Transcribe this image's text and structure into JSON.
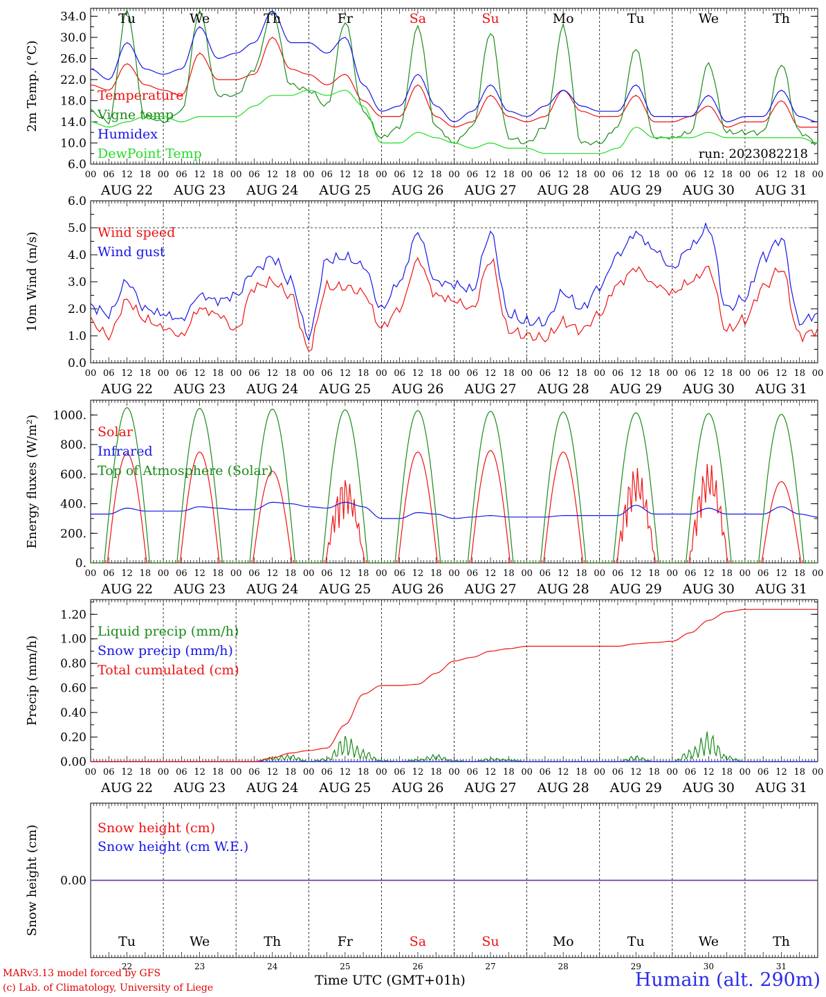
{
  "footer": {
    "model": "MARv3.13 model forced by GFS",
    "lab": "(c) Lab. of Climatology, University of Liege",
    "xtitle": "Time UTC (GMT+01h)",
    "station": "Humain (alt. 290m)"
  },
  "run_label": "run: 2023082218",
  "weekdays": [
    "Tu",
    "We",
    "Th",
    "Fr",
    "Sa",
    "Su",
    "Mo",
    "Tu",
    "We",
    "Th"
  ],
  "weekend_days": [
    "Sa",
    "Su"
  ],
  "dates": [
    "AUG 22",
    "AUG 23",
    "AUG 24",
    "AUG 25",
    "AUG 26",
    "AUG 27",
    "AUG 28",
    "AUG 29",
    "AUG 30",
    "AUG 31"
  ],
  "day_numbers": [
    "22",
    "23",
    "24",
    "25",
    "26",
    "27",
    "28",
    "29",
    "30",
    "31"
  ],
  "hour_ticks": [
    "00",
    "06",
    "12",
    "18"
  ],
  "colors": {
    "red": "#ee1111",
    "blue": "#1515e8",
    "dark_green": "#1a8a1a",
    "light_green": "#22dd22",
    "purple": "#7a3a9a"
  },
  "chart_data": [
    {
      "type": "line",
      "ylabel": "2m Temp. (°C)",
      "ylim": [
        6,
        35.5
      ],
      "yticks": [
        "6.0",
        "10.0",
        "14.0",
        "18.0",
        "22.0",
        "26.0",
        "30.0",
        "34.0"
      ],
      "x": "hours since Aug 22 00 UTC, every 6h",
      "series": [
        {
          "name": "Temperature",
          "color": "#ee1111",
          "values": [
            21,
            20,
            25,
            21,
            20,
            19,
            27,
            22,
            22,
            23,
            30,
            24,
            23,
            21,
            23,
            18,
            15,
            15,
            21,
            15,
            13,
            14,
            19,
            15,
            14,
            15,
            20,
            16,
            15,
            15,
            19,
            14,
            14,
            15,
            17,
            13,
            14,
            14,
            18,
            13,
            13
          ]
        },
        {
          "name": "Vigne temp",
          "color": "#1a8a1a",
          "values": [
            16,
            14,
            35,
            15,
            14,
            16,
            35,
            19,
            19,
            24,
            35,
            21,
            20,
            17,
            33,
            16,
            11,
            13,
            32,
            13,
            10,
            13,
            31,
            11,
            10,
            13,
            32,
            10,
            10,
            13,
            28,
            11,
            11,
            12,
            25,
            12,
            12,
            12,
            25,
            12,
            10
          ]
        },
        {
          "name": "Humidex",
          "color": "#1515e8",
          "values": [
            24,
            22,
            29,
            24,
            23,
            24,
            32,
            26,
            27,
            29,
            35,
            29,
            29,
            27,
            30,
            21,
            16,
            17,
            23,
            17,
            14,
            16,
            21,
            16,
            15,
            17,
            20,
            17,
            16,
            16,
            21,
            15,
            15,
            15,
            19,
            14,
            15,
            15,
            20,
            15,
            14
          ]
        },
        {
          "name": "DewPoint Temp",
          "color": "#22dd22",
          "values": [
            14,
            13,
            14,
            15,
            15,
            14,
            15,
            15,
            15,
            17,
            19,
            19,
            20,
            19,
            20,
            17,
            10,
            10,
            12,
            11,
            10,
            9,
            10,
            9,
            9,
            8,
            8,
            8,
            8,
            9,
            13,
            11,
            11,
            11,
            12,
            11,
            11,
            11,
            11,
            11,
            10
          ]
        }
      ],
      "legend": "top-left"
    },
    {
      "type": "line",
      "ylabel": "10m Wind (m/s)",
      "ylim": [
        0,
        6
      ],
      "yticks": [
        "0.0",
        "1.0",
        "2.0",
        "3.0",
        "4.0",
        "5.0",
        "6.0"
      ],
      "series": [
        {
          "name": "Wind speed",
          "color": "#ee1111",
          "values": [
            1.5,
            1.0,
            2.3,
            1.6,
            1.3,
            1.0,
            2.0,
            1.8,
            1.2,
            2.8,
            3.0,
            2.5,
            0.5,
            2.8,
            2.8,
            2.6,
            1.3,
            2.0,
            3.8,
            2.5,
            2.3,
            2.0,
            3.8,
            1.2,
            1.0,
            0.9,
            1.5,
            1.2,
            1.8,
            2.9,
            3.5,
            2.9,
            2.6,
            3.0,
            3.5,
            1.2,
            1.6,
            2.8,
            3.5,
            1.0,
            1.2
          ]
        },
        {
          "name": "Wind gust",
          "color": "#1515e8",
          "values": [
            2.1,
            1.8,
            3.0,
            2.0,
            1.8,
            1.6,
            2.5,
            2.3,
            2.5,
            3.4,
            3.9,
            3.0,
            1.0,
            3.8,
            3.9,
            3.6,
            2.0,
            3.0,
            4.8,
            3.0,
            2.9,
            2.7,
            4.8,
            1.8,
            1.5,
            1.5,
            2.6,
            2.0,
            2.8,
            4.0,
            4.8,
            4.2,
            3.5,
            4.3,
            5.0,
            2.0,
            2.4,
            3.9,
            4.6,
            1.5,
            1.8
          ]
        }
      ],
      "legend": "top-left"
    },
    {
      "type": "line",
      "ylabel": "Energy fluxes (W/m²)",
      "ylim": [
        0,
        1100
      ],
      "yticks": [
        "0.",
        "200.",
        "400.",
        "600.",
        "800.",
        "1000."
      ],
      "series": [
        {
          "name": "Solar",
          "color": "#ee1111",
          "peaks": [
            740,
            750,
            620,
            580,
            750,
            760,
            750,
            650,
            680,
            550
          ]
        },
        {
          "name": "Infrared",
          "color": "#1515e8",
          "values": [
            330,
            330,
            370,
            350,
            350,
            350,
            380,
            370,
            360,
            360,
            410,
            400,
            380,
            370,
            410,
            380,
            300,
            300,
            340,
            330,
            300,
            310,
            320,
            310,
            310,
            310,
            320,
            320,
            320,
            320,
            390,
            330,
            330,
            330,
            370,
            330,
            330,
            330,
            380,
            330,
            310
          ]
        },
        {
          "name": "Top of Atmosphere (Solar)",
          "color": "#1a8a1a",
          "peaks": [
            1050,
            1045,
            1040,
            1035,
            1030,
            1025,
            1020,
            1015,
            1010,
            1005
          ]
        }
      ],
      "legend": "top-left"
    },
    {
      "type": "line",
      "ylabel": "Precip (mm/h)",
      "ylim": [
        0,
        1.32
      ],
      "yticks": [
        "0.00",
        "0.20",
        "0.40",
        "0.60",
        "0.80",
        "1.00",
        "1.20"
      ],
      "series": [
        {
          "name": "Liquid precip (mm/h)",
          "color": "#1a8a1a",
          "values": [
            0,
            0,
            0,
            0,
            0,
            0,
            0,
            0,
            0,
            0,
            0.04,
            0.06,
            0,
            0.03,
            0.22,
            0.1,
            0.01,
            0,
            0.02,
            0.06,
            0.01,
            0,
            0.03,
            0.02,
            0,
            0,
            0,
            0,
            0,
            0,
            0.05,
            0,
            0,
            0.1,
            0.25,
            0.05,
            0,
            0,
            0,
            0,
            0
          ]
        },
        {
          "name": "Snow precip (mm/h)",
          "color": "#1515e8",
          "values": [
            0,
            0,
            0,
            0,
            0,
            0,
            0,
            0,
            0,
            0,
            0,
            0,
            0,
            0,
            0,
            0,
            0,
            0,
            0,
            0,
            0,
            0,
            0,
            0,
            0,
            0,
            0,
            0,
            0,
            0,
            0,
            0,
            0,
            0,
            0,
            0,
            0,
            0,
            0,
            0,
            0
          ]
        },
        {
          "name": "Total cumulated (cm)",
          "color": "#ee1111",
          "values": [
            0,
            0,
            0,
            0,
            0,
            0,
            0,
            0,
            0,
            0,
            0.03,
            0.07,
            0.09,
            0.11,
            0.3,
            0.55,
            0.62,
            0.62,
            0.63,
            0.72,
            0.82,
            0.85,
            0.9,
            0.92,
            0.94,
            0.94,
            0.94,
            0.94,
            0.94,
            0.94,
            0.96,
            0.97,
            0.98,
            1.05,
            1.15,
            1.22,
            1.24,
            1.24,
            1.24,
            1.24,
            1.24
          ]
        }
      ],
      "legend": "top-left"
    },
    {
      "type": "line",
      "ylabel": "Snow height (cm)",
      "ylim": [
        -1,
        1
      ],
      "yticks": [
        "0.00"
      ],
      "series": [
        {
          "name": "Snow height (cm)",
          "color": "#ee1111",
          "values": [
            0,
            0,
            0,
            0,
            0,
            0,
            0,
            0,
            0,
            0,
            0,
            0,
            0,
            0,
            0,
            0,
            0,
            0,
            0,
            0,
            0,
            0,
            0,
            0,
            0,
            0,
            0,
            0,
            0,
            0,
            0,
            0,
            0,
            0,
            0,
            0,
            0,
            0,
            0,
            0,
            0
          ]
        },
        {
          "name": "Snow height (cm W.E.)",
          "color": "#1515e8",
          "values": [
            0,
            0,
            0,
            0,
            0,
            0,
            0,
            0,
            0,
            0,
            0,
            0,
            0,
            0,
            0,
            0,
            0,
            0,
            0,
            0,
            0,
            0,
            0,
            0,
            0,
            0,
            0,
            0,
            0,
            0,
            0,
            0,
            0,
            0,
            0,
            0,
            0,
            0,
            0,
            0,
            0
          ]
        }
      ],
      "legend": "top-left"
    }
  ]
}
